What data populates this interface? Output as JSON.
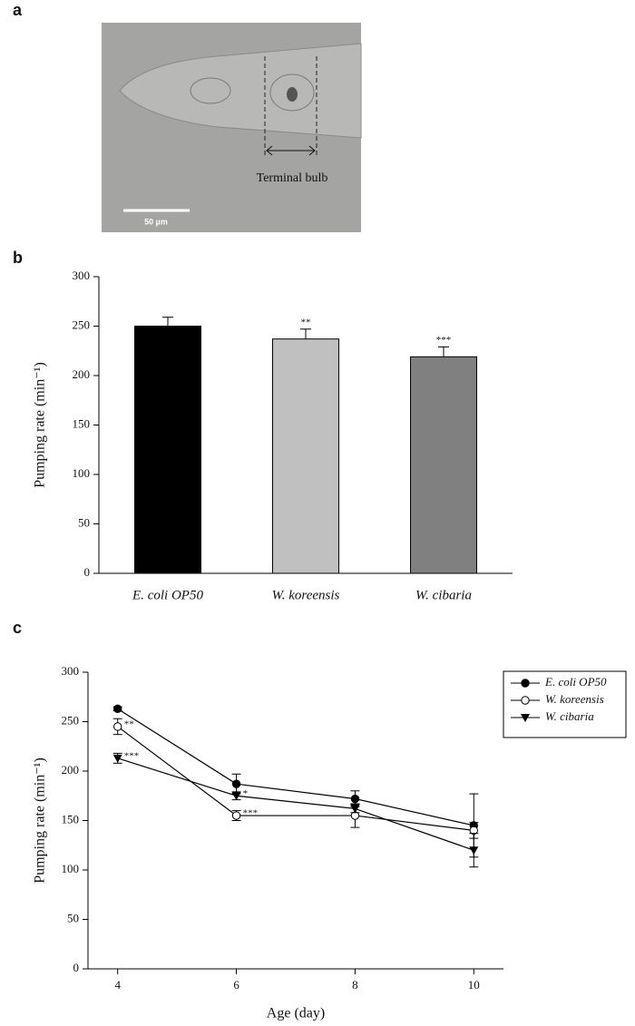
{
  "figure_a": {
    "panel": "a",
    "annotation": "Terminal bulb",
    "scale_bar": "50 µm"
  },
  "chart_data": [
    {
      "type": "bar",
      "panel": "b",
      "ylabel": "Pumping rate (min⁻¹)",
      "categories": [
        "E. coli OP50",
        "W. koreensis",
        "W. cibaria"
      ],
      "values": [
        250,
        237,
        219
      ],
      "errors": [
        9,
        10,
        10
      ],
      "annotations": [
        null,
        "**",
        "***"
      ],
      "colors": [
        "#000000",
        "#c0c0c0",
        "#808080"
      ],
      "ylim": [
        0,
        300
      ],
      "yticks": [
        0,
        50,
        100,
        150,
        200,
        250,
        300
      ]
    },
    {
      "type": "line",
      "panel": "c",
      "ylabel": "Pumping rate (min⁻¹)",
      "xlabel": "Age (day)",
      "x": [
        4,
        6,
        8,
        10
      ],
      "xlim": [
        3.5,
        10.5
      ],
      "xticks": [
        4,
        6,
        8,
        10
      ],
      "ylim": [
        0,
        300
      ],
      "yticks": [
        0,
        50,
        100,
        150,
        200,
        250,
        300
      ],
      "legend": "upper right",
      "series": [
        {
          "name": "E. coli OP50",
          "color": "#000000",
          "marker": "circle-filled",
          "values": [
            263,
            187,
            172,
            145
          ],
          "errors": [
            2,
            10,
            8,
            32
          ],
          "annotations": [
            null,
            null,
            null,
            null
          ]
        },
        {
          "name": "W. koreensis",
          "color": "#000000",
          "marker": "circle-open",
          "values": [
            245,
            155,
            155,
            140
          ],
          "errors": [
            8,
            5,
            12,
            8
          ],
          "annotations": [
            "**",
            "***",
            null,
            null
          ]
        },
        {
          "name": "W. cibaria",
          "color": "#000000",
          "marker": "triangle-down",
          "values": [
            213,
            175,
            162,
            120
          ],
          "errors": [
            5,
            4,
            4,
            17
          ],
          "annotations": [
            "***",
            "*",
            null,
            null
          ]
        }
      ]
    }
  ]
}
